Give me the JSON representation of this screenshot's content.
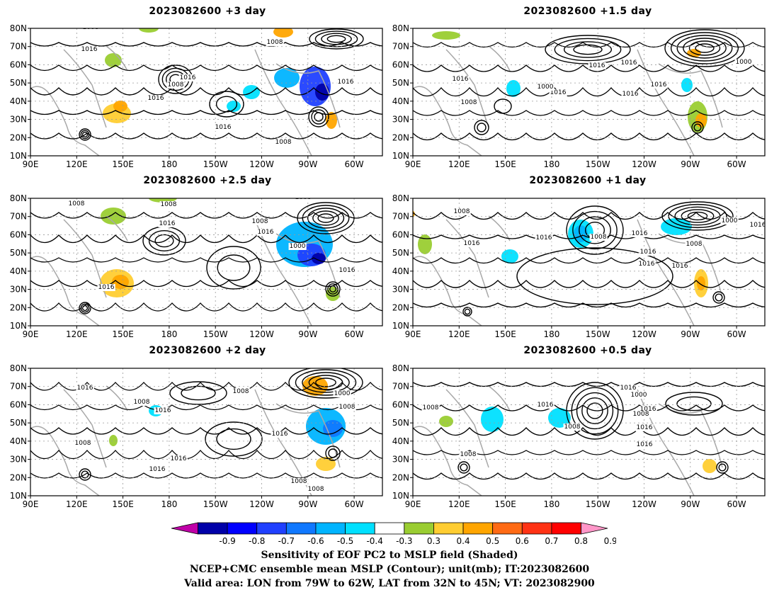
{
  "panels": [
    {
      "title": "2023082600  +3 day"
    },
    {
      "title": "2023082600  +1.5 day"
    },
    {
      "title": "2023082600  +2.5 day"
    },
    {
      "title": "2023082600  +1 day"
    },
    {
      "title": "2023082600  +2 day"
    },
    {
      "title": "2023082600  +0.5 day"
    }
  ],
  "axes": {
    "lat_labels": [
      "80N",
      "70N",
      "60N",
      "50N",
      "40N",
      "30N",
      "20N",
      "10N"
    ],
    "lon_labels": [
      "90E",
      "120E",
      "150E",
      "180",
      "150W",
      "120W",
      "90W",
      "60W"
    ]
  },
  "contour_labels": [
    "1000",
    "1008",
    "1016"
  ],
  "colorbar": {
    "ticks": [
      "-0.9",
      "-0.8",
      "-0.7",
      "-0.6",
      "-0.5",
      "-0.4",
      "-0.3",
      "0.3",
      "0.4",
      "0.5",
      "0.6",
      "0.7",
      "0.8",
      "0.9"
    ],
    "colors": [
      "#c000a8",
      "#0000a8",
      "#0000ff",
      "#2040ff",
      "#1078ff",
      "#00b4ff",
      "#00e0ff",
      "#ffffff",
      "#9acd32",
      "#ffcd32",
      "#ffa500",
      "#ff6a14",
      "#ff3214",
      "#ff0000",
      "#ff96c8"
    ]
  },
  "caption": {
    "line1": "Sensitivity of EOF PC2 to MSLP field (Shaded)",
    "line2": "NCEP+CMC ensemble mean MSLP (Contour); unit(mb); IT:2023082600",
    "line3": "Valid area: LON from 79W to 62W, LAT from 32N to 45N; VT: 2023082900"
  }
}
